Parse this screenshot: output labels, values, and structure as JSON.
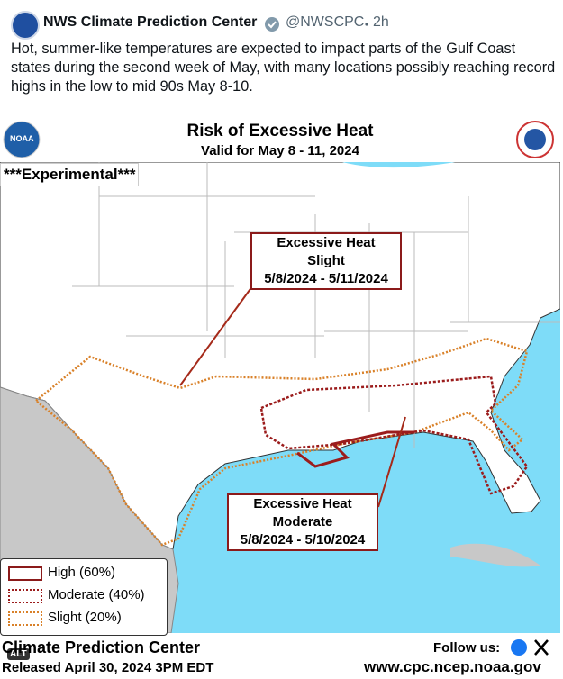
{
  "tweet": {
    "author": "NWS Climate Prediction Center",
    "handle": "@NWSCPC",
    "time": "2h",
    "text": "Hot, summer-like temperatures are expected to impact parts of the Gulf Coast states during the second week of May, with many locations possibly reaching record highs in the low to mid 90s May 8-10."
  },
  "map": {
    "logo": "NOAA",
    "title": "Risk of Excessive Heat",
    "subtitle": "Valid for May 8 - 11, 2024",
    "tag": "***Experimental***",
    "callouts": [
      {
        "title": "Excessive Heat",
        "level": "Slight",
        "dates": "5/8/2024 - 5/11/2024"
      },
      {
        "title": "Excessive Heat",
        "level": "Moderate",
        "dates": "5/8/2024 - 5/10/2024"
      }
    ],
    "legend": [
      "High (60%)",
      "Moderate (40%)",
      "Slight (20%)"
    ],
    "footer": {
      "center": "Climate Prediction Center",
      "released": "Released April 30, 2024 3PM EDT",
      "follow": "Follow us:",
      "url": "www.cpc.ncep.noaa.gov",
      "alt": "ALT"
    }
  }
}
